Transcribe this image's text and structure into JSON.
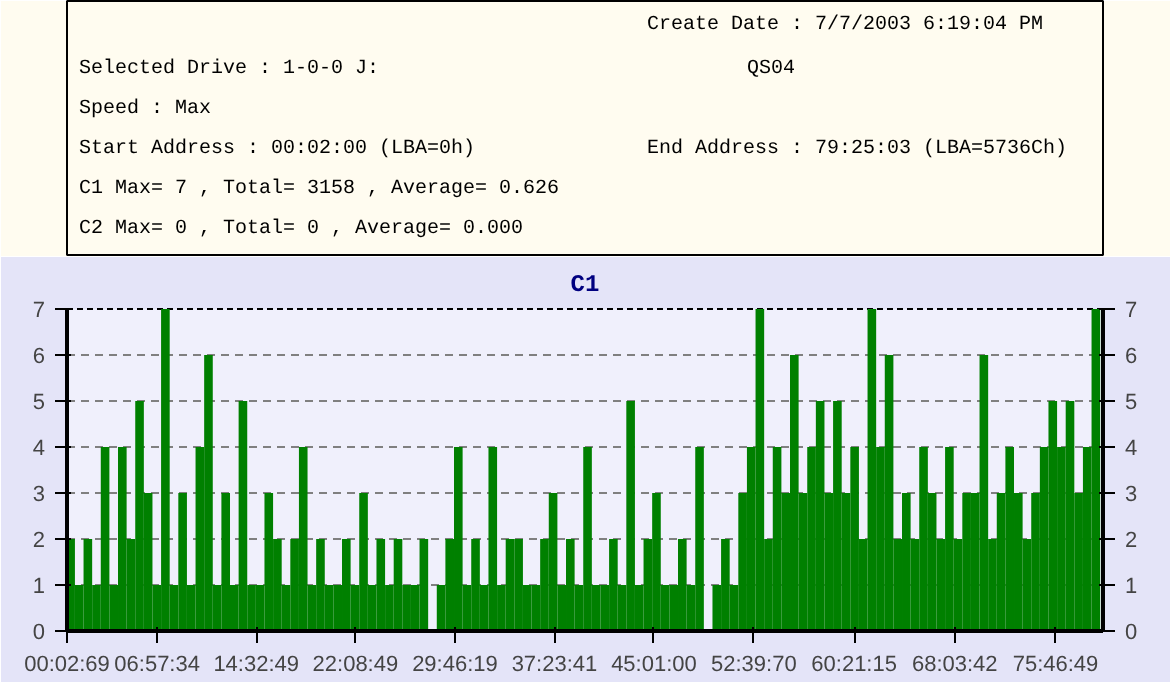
{
  "chart_data": {
    "type": "bar",
    "title": "C1",
    "annotations": [
      "Create Date    :  7/7/2003 6:19:04 PM",
      "Selected Drive : 1-0-0 J:",
      "QS04",
      "Speed          : Max",
      "Start Address  : 00:02:00 (LBA=0h)",
      "End Address    : 79:25:03 (LBA=5736Ch)",
      "C1 Max= 7 , Total= 3158 , Average= 0.626",
      "C2 Max= 0 , Total= 0 , Average= 0.000"
    ],
    "x": [
      0.33,
      0.99,
      1.65,
      2.31,
      2.97,
      3.63,
      4.29,
      4.95,
      5.61,
      6.27,
      6.93,
      7.59,
      8.25,
      8.91,
      9.57,
      10.23,
      10.89,
      11.55,
      12.21,
      12.87,
      13.53,
      14.19,
      14.85,
      15.51,
      16.17,
      16.83,
      17.49,
      18.15,
      18.81,
      19.47,
      20.13,
      20.79,
      21.45,
      22.11,
      22.77,
      23.43,
      24.09,
      24.75,
      25.41,
      26.07,
      26.73,
      27.39,
      28.05,
      28.71,
      29.37,
      30.03,
      30.69,
      31.35,
      32.01,
      32.67,
      33.33,
      33.99,
      34.65,
      35.31,
      35.97,
      36.63,
      37.29,
      37.95,
      38.61,
      39.27,
      39.93,
      40.59,
      41.25,
      41.91,
      42.57,
      43.23,
      43.89,
      44.55,
      45.21,
      45.87,
      46.53,
      47.19,
      47.85,
      48.51,
      49.17,
      49.83,
      50.49,
      51.15,
      51.81,
      52.47,
      53.13,
      53.79,
      54.45,
      55.11,
      55.77,
      56.43,
      57.09,
      57.75,
      58.41,
      59.07,
      59.73,
      60.39,
      61.05,
      61.71,
      62.37,
      63.03,
      63.69,
      64.35,
      65.01,
      65.67,
      66.33,
      66.99,
      67.65,
      68.31,
      68.97,
      69.63,
      70.29,
      70.95,
      71.61,
      72.27,
      72.93,
      73.59,
      74.25,
      74.91,
      75.57,
      76.23,
      76.89,
      77.55,
      78.21,
      78.87
    ],
    "series": [
      {
        "color": "#008000",
        "values": [
          2,
          1,
          2,
          1,
          4,
          1,
          4,
          2,
          5,
          3,
          1,
          7,
          1,
          3,
          1,
          4,
          6,
          1,
          3,
          1,
          5,
          1,
          1,
          3,
          2,
          1,
          2,
          4,
          1,
          2,
          1,
          1,
          2,
          1,
          3,
          1,
          2,
          1,
          2,
          1,
          1,
          2,
          0,
          1,
          2,
          4,
          1,
          2,
          1,
          4,
          1,
          2,
          2,
          1,
          1,
          2,
          3,
          1,
          2,
          1,
          4,
          1,
          1,
          2,
          1,
          5,
          1,
          2,
          3,
          1,
          1,
          2,
          1,
          4,
          0,
          1,
          2,
          1,
          3,
          4,
          7,
          2,
          4,
          3,
          6,
          3,
          4,
          5,
          3,
          5,
          3,
          4,
          2,
          7,
          4,
          6,
          2,
          3,
          2,
          4,
          3,
          2,
          4,
          2,
          3,
          3,
          6,
          2,
          3,
          4,
          3,
          2,
          3,
          4,
          5,
          4,
          5,
          3,
          4,
          7
        ]
      }
    ],
    "xlim": [
      0.0525,
      79.4175
    ],
    "xticks": [
      {
        "value": 0.0525,
        "label": "00:02:69"
      },
      {
        "value": 6.9594,
        "label": "06:57:34"
      },
      {
        "value": 14.5469,
        "label": "14:32:49"
      },
      {
        "value": 22.1469,
        "label": "22:08:49"
      },
      {
        "value": 29.7719,
        "label": "29:46:19"
      },
      {
        "value": 37.3947,
        "label": "37:23:41"
      },
      {
        "value": 45.0167,
        "label": "45:01:00"
      },
      {
        "value": 52.6694,
        "label": "52:39:70"
      },
      {
        "value": 60.3542,
        "label": "60:21:15"
      },
      {
        "value": 68.0617,
        "label": "68:03:42"
      },
      {
        "value": 75.7803,
        "label": "75:46:49"
      }
    ],
    "ylim": [
      0,
      7
    ],
    "yticks": [
      0,
      1,
      2,
      3,
      4,
      5,
      6,
      7
    ],
    "y2lim": [
      0,
      7
    ],
    "y2ticks": [
      0,
      1,
      2,
      3,
      4,
      5,
      6,
      7
    ],
    "grid": "y"
  }
}
